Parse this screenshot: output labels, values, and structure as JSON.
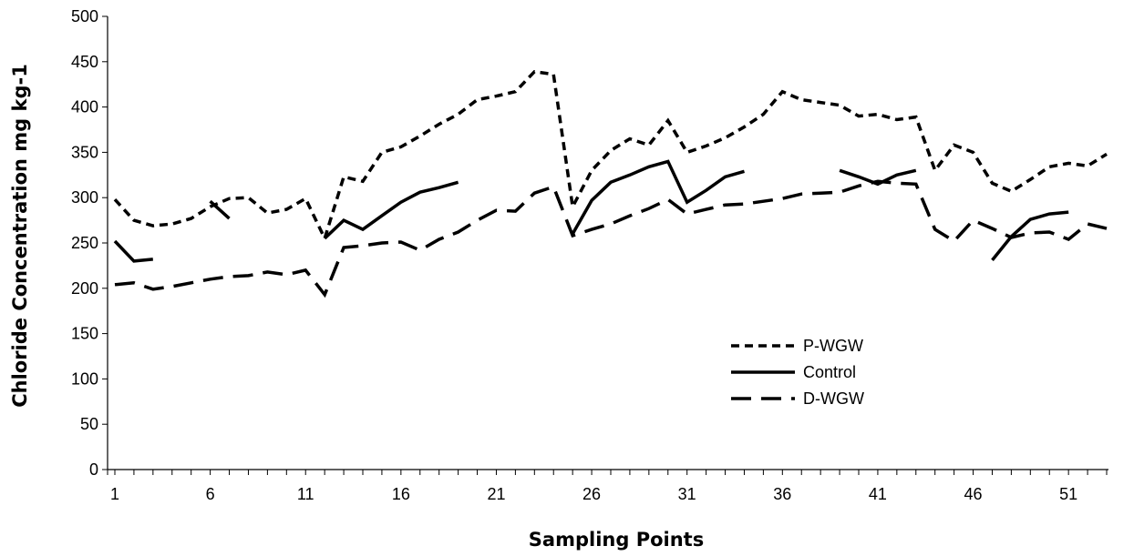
{
  "chart_data": {
    "type": "line",
    "title": "",
    "xlabel": "Sampling Points",
    "ylabel": "Chloride Concentration mg kg-1",
    "xlim": [
      1,
      53
    ],
    "ylim": [
      0,
      500
    ],
    "y_ticks": [
      "0",
      "50",
      "100",
      "150",
      "200",
      "250",
      "300",
      "350",
      "400",
      "450",
      "500"
    ],
    "x_tick_labels": [
      "1",
      "6",
      "11",
      "16",
      "21",
      "26",
      "31",
      "36",
      "41",
      "46",
      "51"
    ],
    "grid": false,
    "legend_position": "center-right",
    "series": [
      {
        "name": "P-WGW",
        "style": "short-dash",
        "color": "#000000",
        "points": [
          [
            1,
            298
          ],
          [
            2,
            275
          ],
          [
            3,
            269
          ],
          [
            4,
            271
          ],
          [
            5,
            277
          ],
          [
            6,
            290
          ],
          [
            7,
            299
          ],
          [
            8,
            300
          ],
          [
            9,
            283
          ],
          [
            10,
            287
          ],
          [
            11,
            299
          ],
          [
            12,
            255
          ],
          [
            13,
            323
          ],
          [
            14,
            318
          ],
          [
            15,
            350
          ],
          [
            16,
            356
          ],
          [
            17,
            368
          ],
          [
            18,
            381
          ],
          [
            19,
            392
          ],
          [
            20,
            408
          ],
          [
            21,
            412
          ],
          [
            22,
            417
          ],
          [
            23,
            439
          ],
          [
            24,
            436
          ],
          [
            25,
            290
          ],
          [
            26,
            330
          ],
          [
            27,
            352
          ],
          [
            28,
            365
          ],
          [
            29,
            358
          ],
          [
            30,
            385
          ],
          [
            31,
            350
          ],
          [
            32,
            357
          ],
          [
            33,
            366
          ],
          [
            34,
            378
          ],
          [
            35,
            392
          ],
          [
            36,
            417
          ],
          [
            37,
            408
          ],
          [
            38,
            405
          ],
          [
            39,
            402
          ],
          [
            40,
            390
          ],
          [
            41,
            392
          ],
          [
            42,
            386
          ],
          [
            43,
            389
          ],
          [
            44,
            330
          ],
          [
            45,
            358
          ],
          [
            46,
            350
          ],
          [
            47,
            316
          ],
          [
            48,
            307
          ],
          [
            49,
            320
          ],
          [
            50,
            334
          ],
          [
            51,
            338
          ],
          [
            52,
            335
          ],
          [
            53,
            348
          ]
        ]
      },
      {
        "name": "Control",
        "style": "solid",
        "color": "#000000",
        "segments": [
          [
            [
              1,
              252
            ],
            [
              2,
              230
            ],
            [
              3,
              232
            ]
          ],
          [
            [
              6,
              296
            ],
            [
              7,
              277
            ]
          ],
          [
            [
              12,
              255
            ],
            [
              13,
              275
            ],
            [
              14,
              265
            ],
            [
              15,
              280
            ],
            [
              16,
              295
            ],
            [
              17,
              306
            ],
            [
              18,
              311
            ],
            [
              19,
              317
            ]
          ],
          [
            [
              25,
              260
            ],
            [
              26,
              297
            ],
            [
              27,
              317
            ],
            [
              28,
              325
            ],
            [
              29,
              334
            ],
            [
              30,
              340
            ],
            [
              31,
              295
            ],
            [
              32,
              308
            ],
            [
              33,
              323
            ],
            [
              34,
              329
            ]
          ],
          [
            [
              39,
              330
            ],
            [
              40,
              323
            ],
            [
              41,
              315
            ],
            [
              42,
              325
            ],
            [
              43,
              330
            ]
          ],
          [
            [
              47,
              231
            ],
            [
              48,
              257
            ],
            [
              49,
              276
            ],
            [
              50,
              282
            ],
            [
              51,
              284
            ]
          ]
        ]
      },
      {
        "name": "D-WGW",
        "style": "long-dash",
        "color": "#000000",
        "points": [
          [
            1,
            204
          ],
          [
            2,
            206
          ],
          [
            3,
            199
          ],
          [
            4,
            202
          ],
          [
            5,
            206
          ],
          [
            6,
            210
          ],
          [
            7,
            213
          ],
          [
            8,
            214
          ],
          [
            9,
            218
          ],
          [
            10,
            215
          ],
          [
            11,
            220
          ],
          [
            12,
            193
          ],
          [
            13,
            245
          ],
          [
            14,
            247
          ],
          [
            15,
            250
          ],
          [
            16,
            251
          ],
          [
            17,
            242
          ],
          [
            18,
            254
          ],
          [
            19,
            262
          ],
          [
            20,
            275
          ],
          [
            21,
            286
          ],
          [
            22,
            285
          ],
          [
            23,
            305
          ],
          [
            24,
            312
          ],
          [
            25,
            258
          ],
          [
            26,
            265
          ],
          [
            27,
            271
          ],
          [
            28,
            280
          ],
          [
            29,
            288
          ],
          [
            30,
            298
          ],
          [
            31,
            282
          ],
          [
            32,
            287
          ],
          [
            33,
            292
          ],
          [
            34,
            293
          ],
          [
            35,
            296
          ],
          [
            36,
            299
          ],
          [
            37,
            304
          ],
          [
            38,
            305
          ],
          [
            39,
            306
          ],
          [
            40,
            313
          ],
          [
            41,
            318
          ],
          [
            42,
            316
          ],
          [
            43,
            315
          ],
          [
            44,
            265
          ],
          [
            45,
            252
          ],
          [
            46,
            275
          ],
          [
            47,
            266
          ],
          [
            48,
            256
          ],
          [
            49,
            261
          ],
          [
            50,
            262
          ],
          [
            51,
            254
          ],
          [
            52,
            271
          ],
          [
            53,
            266
          ]
        ]
      }
    ]
  }
}
